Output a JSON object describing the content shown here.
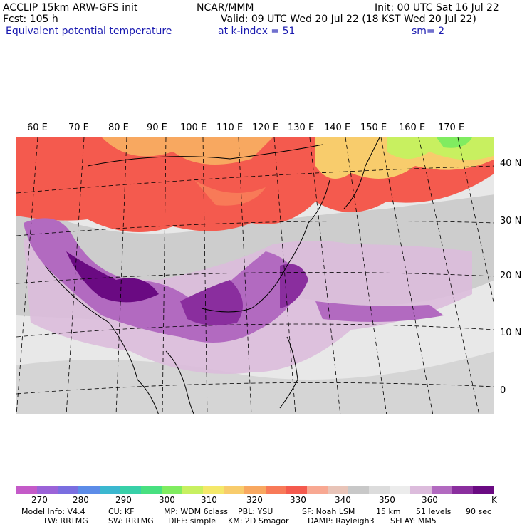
{
  "header": {
    "model": "ACCLIP 15km ARW-GFS init",
    "org": "NCAR/MMM",
    "init": "Init: 00 UTC Sat 16 Jul 22",
    "fcst": "Fcst:  105 h",
    "valid": "Valid: 09 UTC Wed 20 Jul 22 (18 KST Wed 20 Jul 22)",
    "field": "Equivalent potential temperature",
    "level": "at k-index =  51",
    "smooth": "sm= 2"
  },
  "lon_labels": [
    "60 E",
    "70 E",
    "80 E",
    "90 E",
    "100 E",
    "110 E",
    "120 E",
    "130 E",
    "140 E",
    "150 E",
    "160 E",
    "170 E"
  ],
  "lat_labels": [
    "40 N",
    "30 N",
    "20 N",
    "10 N",
    "0"
  ],
  "colorbar": {
    "colors": [
      "#c45ac8",
      "#9b63d8",
      "#7a6ee0",
      "#5c8ce8",
      "#3bb8d0",
      "#38d0a8",
      "#48e080",
      "#80ec60",
      "#c8f060",
      "#f4e86a",
      "#f8cc6c",
      "#f8a860",
      "#f87a58",
      "#f45a4e",
      "#f8a892",
      "#e8c4b8",
      "#c8c8c8",
      "#dcdcdc",
      "#ececec",
      "#dcbcdc",
      "#b26ac0",
      "#8a2e9e",
      "#6a0a82"
    ],
    "ticks": [
      "270",
      "280",
      "290",
      "300",
      "310",
      "320",
      "330",
      "340",
      "350",
      "360"
    ],
    "unit": "K"
  },
  "footer": {
    "line1": [
      "Model Info: V4.4",
      "CU: KF",
      "MP: WDM 6class",
      "PBL: YSU",
      "SF: Noah LSM",
      "15 km",
      "51 levels",
      "90 sec"
    ],
    "line2": [
      "LW: RRTMG",
      "SW: RRTMG",
      "DIFF: simple",
      "KM: 2D Smagor",
      "DAMP: Rayleigh3",
      "SFLAY: MM5"
    ]
  }
}
